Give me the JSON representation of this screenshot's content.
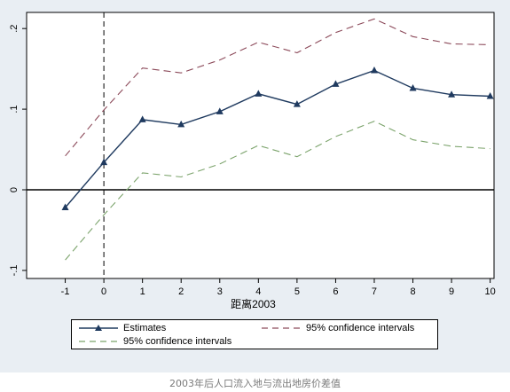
{
  "chart_data": {
    "type": "line",
    "title": "",
    "xlabel": "距离2003",
    "ylabel": "",
    "x": [
      -1,
      0,
      1,
      2,
      3,
      4,
      5,
      6,
      7,
      8,
      9,
      10
    ],
    "x_tick_labels": [
      "-1",
      "0",
      "1",
      "2",
      "3",
      "4",
      "5",
      "6",
      "7",
      "8",
      "9",
      "10"
    ],
    "y_tick_values": [
      -0.1,
      0,
      0.1,
      0.2
    ],
    "y_tick_labels": [
      "-.1",
      "0",
      ".1",
      ".2"
    ],
    "xlim": [
      -2,
      10.1
    ],
    "ylim": [
      -0.11,
      0.22
    ],
    "reference_lines": {
      "horizontal_at_y": 0,
      "vertical_dashed_at_x": 0
    },
    "grid": false,
    "legend_position": "bottom",
    "series": [
      {
        "name": "Estimates",
        "style": "solid-triangle-markers",
        "color": "#1f3a5f",
        "values": [
          -0.022,
          0.034,
          0.087,
          0.081,
          0.097,
          0.119,
          0.106,
          0.131,
          0.148,
          0.126,
          0.118,
          0.116
        ]
      },
      {
        "name": "95% confidence intervals",
        "style": "dashed",
        "color": "#8c4a5a",
        "values": [
          0.042,
          0.099,
          0.151,
          0.145,
          0.161,
          0.183,
          0.17,
          0.195,
          0.212,
          0.19,
          0.181,
          0.18
        ]
      },
      {
        "name": "95% confidence intervals",
        "style": "dashed",
        "color": "#7ba36b",
        "values": [
          -0.087,
          -0.031,
          0.021,
          0.016,
          0.032,
          0.055,
          0.041,
          0.066,
          0.085,
          0.062,
          0.054,
          0.051
        ]
      }
    ]
  },
  "caption": "2003年后人口流入地与流出地房价差值"
}
